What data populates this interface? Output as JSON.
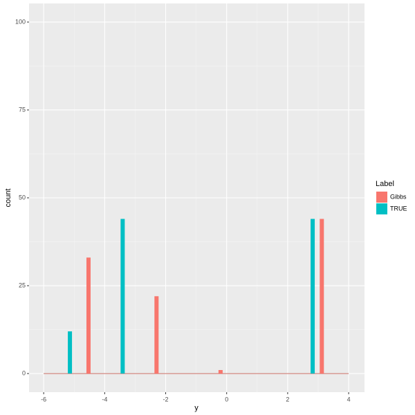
{
  "chart_data": {
    "type": "bar",
    "x_label": "y",
    "y_label": "count",
    "legend_title": "Label",
    "series": [
      {
        "name": "Gibbs",
        "color": "#F8766D",
        "x": [
          -4.53,
          -2.3,
          -0.2,
          3.12
        ],
        "values": [
          33,
          22,
          1,
          44
        ]
      },
      {
        "name": "TRUE",
        "color": "#00BFC4",
        "x": [
          -5.14,
          -3.41,
          2.82
        ],
        "values": [
          12,
          44,
          44
        ]
      }
    ],
    "xlim": [
      -6.48,
      4.52
    ],
    "xticks": [
      -6,
      -4,
      -2,
      0,
      2,
      4
    ],
    "ylim": [
      -5.3,
      105.3
    ],
    "yticks": [
      0,
      25,
      50,
      75,
      100
    ],
    "grid": true,
    "legend": "right"
  }
}
